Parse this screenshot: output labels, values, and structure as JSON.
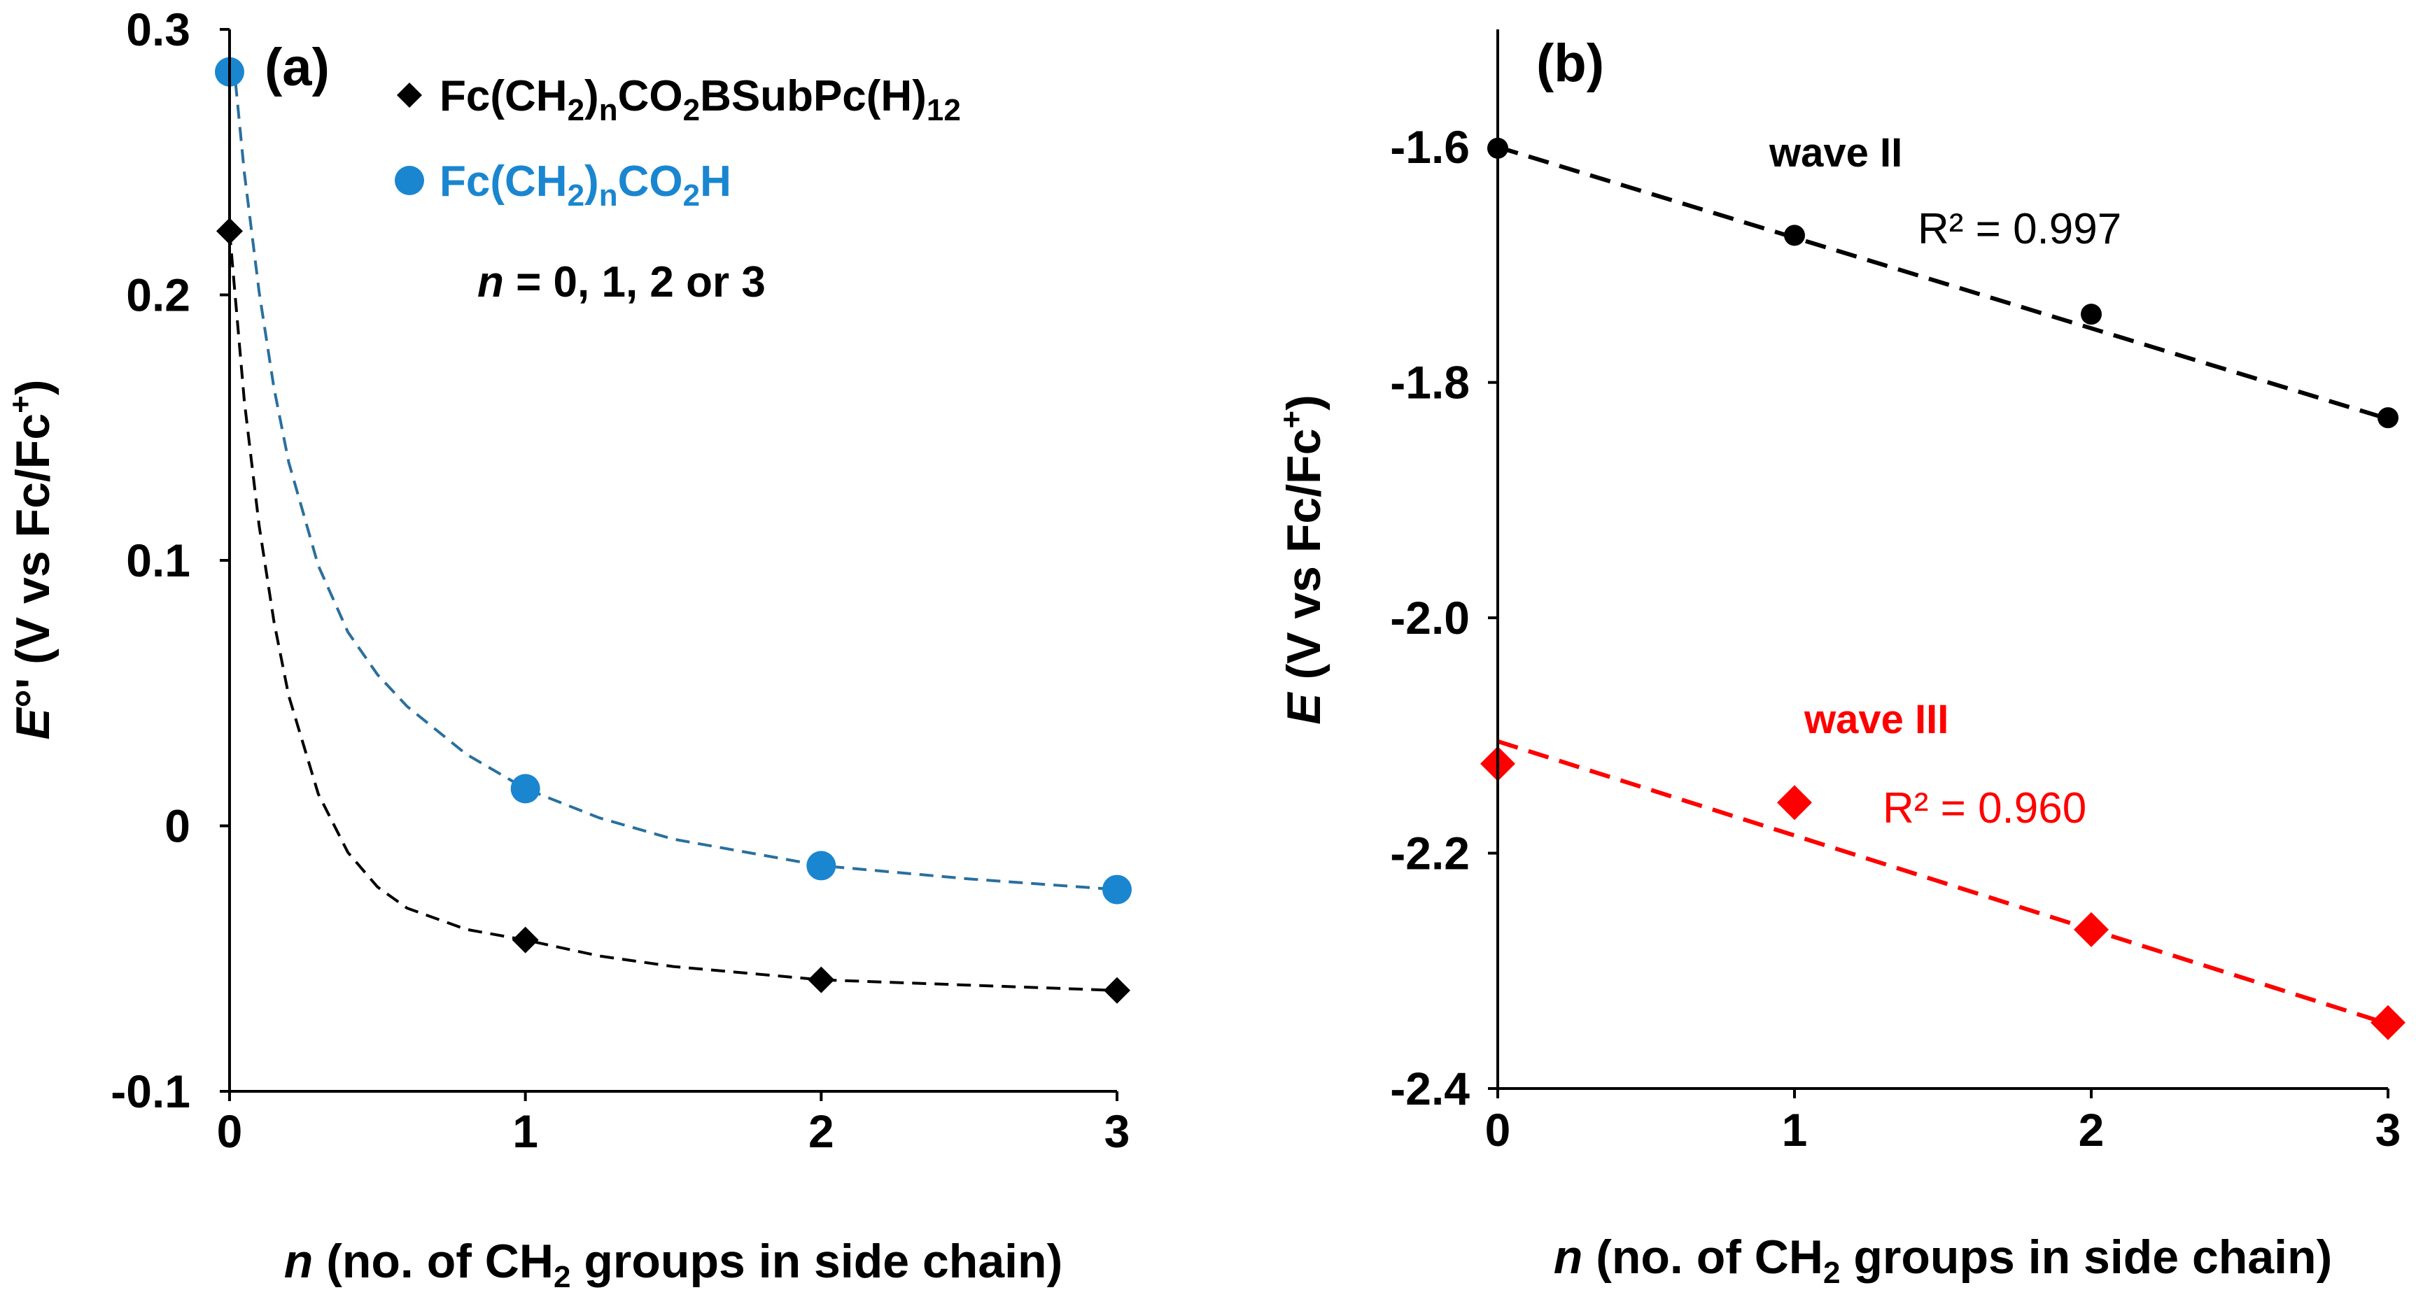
{
  "chart_data": [
    {
      "type": "scatter",
      "panel_label": "(a)",
      "xlim": [
        0,
        3
      ],
      "ylim": [
        -0.1,
        0.3
      ],
      "xticks": [
        "0",
        "1",
        "2",
        "3"
      ],
      "yticks": [
        "-0.1",
        "0",
        "0.1",
        "0.2",
        "0.3"
      ],
      "ylabel": {
        "italic": "E",
        "rest": "°' (V vs Fc/Fc",
        "sup": "+",
        "close": ")"
      },
      "xlabel": {
        "italic": "n",
        "before": " (no. of CH",
        "sub": "2",
        "after": " groups in side chain)"
      },
      "legend_placement": "top-center",
      "legend": [
        {
          "parts": [
            "Fc(CH",
            "2",
            ")",
            "n",
            "CO",
            "2",
            "BSubPc(H)",
            "12"
          ],
          "color": "#000000",
          "marker": "diamond"
        },
        {
          "parts": [
            "Fc(CH",
            "2",
            ")",
            "n",
            "CO",
            "2",
            "H"
          ],
          "color": "#1a86d0",
          "marker": "circle"
        }
      ],
      "note": {
        "italic": "n",
        "rest": " = 0, 1, 2 or 3"
      },
      "series": [
        {
          "marker": "diamond",
          "color": "#000000",
          "x": [
            0,
            1,
            2,
            3
          ],
          "y": [
            0.224,
            -0.043,
            -0.058,
            -0.062
          ]
        },
        {
          "marker": "circle",
          "color": "#1a86d0",
          "x": [
            0,
            1,
            2,
            3
          ],
          "y": [
            0.284,
            0.014,
            -0.015,
            -0.024
          ]
        }
      ],
      "fits": [
        {
          "color": "#000000",
          "dash": true,
          "x": [
            0,
            0.05,
            0.1,
            0.15,
            0.2,
            0.3,
            0.4,
            0.5,
            0.6,
            0.8,
            1.0,
            1.25,
            1.5,
            2.0,
            2.5,
            3.0
          ],
          "y": [
            0.224,
            0.16,
            0.113,
            0.077,
            0.049,
            0.012,
            -0.01,
            -0.023,
            -0.031,
            -0.039,
            -0.043,
            -0.049,
            -0.053,
            -0.058,
            -0.06,
            -0.062
          ]
        },
        {
          "color": "#2a6f9e",
          "dash": true,
          "x": [
            0.02,
            0.05,
            0.1,
            0.15,
            0.2,
            0.3,
            0.4,
            0.5,
            0.6,
            0.8,
            1.0,
            1.25,
            1.5,
            2.0,
            2.5,
            3.0
          ],
          "y": [
            0.28,
            0.246,
            0.201,
            0.165,
            0.137,
            0.098,
            0.073,
            0.057,
            0.045,
            0.027,
            0.014,
            0.003,
            -0.005,
            -0.015,
            -0.02,
            -0.024
          ]
        }
      ]
    },
    {
      "type": "scatter",
      "panel_label": "(b)",
      "xlim": [
        0,
        3
      ],
      "ylim": [
        -2.4,
        -1.5
      ],
      "xticks": [
        "0",
        "1",
        "2",
        "3"
      ],
      "yticks": [
        "-2.4",
        "-2.2",
        "-2.0",
        "-1.8",
        "-1.6"
      ],
      "ylabel": {
        "italic": "E",
        "rest": " (V vs Fc/Fc",
        "sup": "+",
        "close": ")"
      },
      "xlabel": {
        "italic": "n",
        "before": " (no. of CH",
        "sub": "2",
        "after": " groups in side chain)"
      },
      "series": [
        {
          "name": "wave II",
          "marker": "circle",
          "color": "#000000",
          "x": [
            0,
            1,
            2,
            3
          ],
          "y": [
            -1.601,
            -1.675,
            -1.742,
            -1.83
          ]
        },
        {
          "name": "wave III",
          "marker": "diamond",
          "color": "#ff0000",
          "x": [
            0,
            1,
            2,
            3
          ],
          "y": [
            -2.124,
            -2.157,
            -2.265,
            -2.344
          ]
        }
      ],
      "fits": [
        {
          "color": "#000000",
          "dash": true,
          "r2": "R² = 0.997",
          "x": [
            0,
            3
          ],
          "y": [
            -1.6,
            -1.831
          ]
        },
        {
          "color": "#ff0000",
          "dash": true,
          "r2": "R² = 0.960",
          "x": [
            0,
            3
          ],
          "y": [
            -2.105,
            -2.345
          ]
        }
      ],
      "labels": [
        {
          "text": "wave II",
          "color": "#000000",
          "bold": true
        },
        {
          "text": "wave III",
          "color": "#ff0000",
          "bold": true
        }
      ]
    }
  ]
}
